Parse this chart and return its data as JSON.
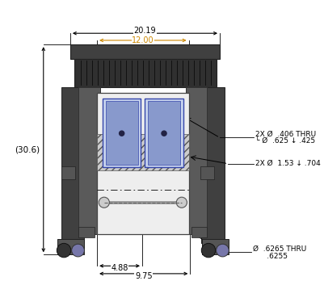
{
  "bg_color": "#ffffff",
  "fig_width": 4.01,
  "fig_height": 3.74,
  "dpi": 100,
  "top_width_label": "20.19",
  "mid_width_label": "12.00",
  "height_label": "(30.6)",
  "bottom_left_label": "4.88",
  "bottom_right_label": "9.75",
  "right_label1": "2X Ø  .406 THRU",
  "right_label2": "└ Ø  .625 ↓ .425",
  "right_label3": "2X Ø  1.53 ↓ .704",
  "bottom_label": "Ø  .6265 THRU",
  "bottom_label2": "      .6255",
  "dark_gray": "#404040",
  "medium_gray": "#5a5a5a",
  "light_gray": "#aaaaaa",
  "blue_fill": "#8899CC",
  "blue_fill2": "#c8d4ee",
  "dim_color": "#000000",
  "orange_color": "#CC8800",
  "dim_line_color": "#333333"
}
